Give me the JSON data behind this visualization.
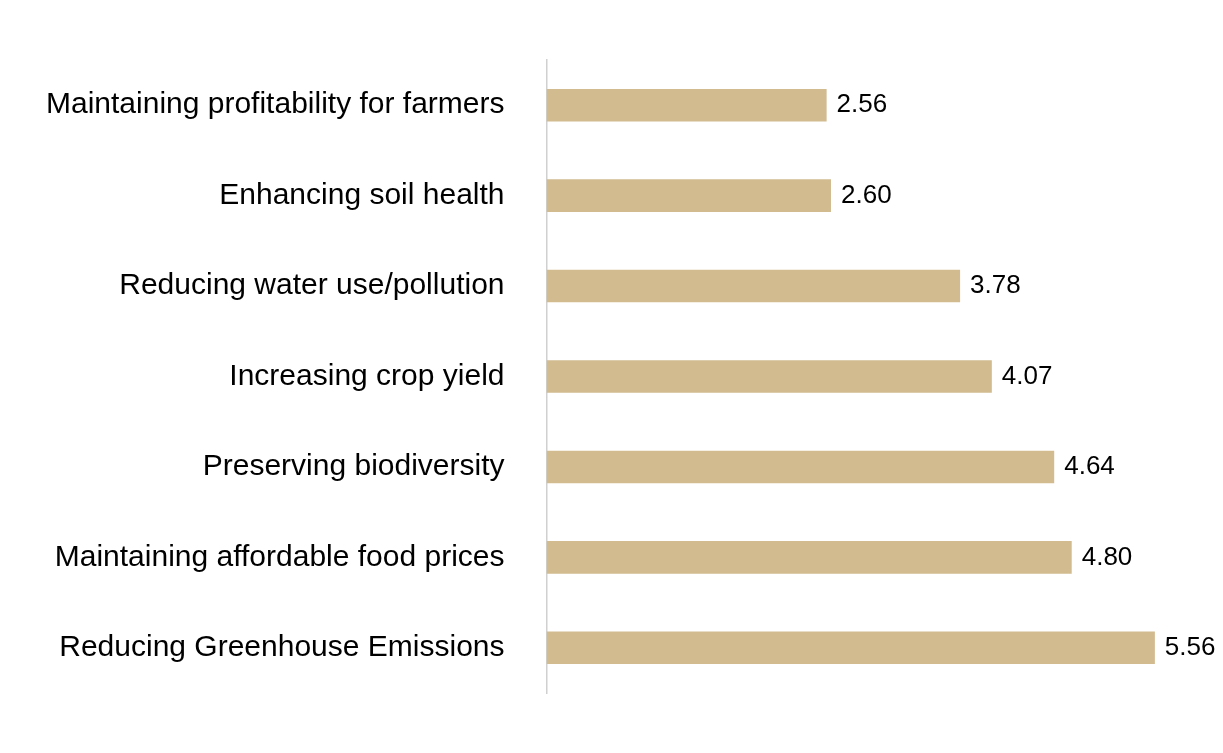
{
  "chart_data": {
    "type": "bar",
    "orientation": "horizontal",
    "categories": [
      "Maintaining profitability for farmers",
      "Enhancing soil health",
      "Reducing water use/pollution",
      "Increasing crop yield",
      "Preserving biodiversity",
      "Maintaining affordable food prices",
      "Reducing Greenhouse Emissions"
    ],
    "values": [
      2.56,
      2.6,
      3.78,
      4.07,
      4.64,
      4.8,
      5.56
    ],
    "value_labels": [
      "2.56",
      "2.60",
      "3.78",
      "4.07",
      "4.64",
      "4.80",
      "5.56"
    ],
    "color": "#d1bb8f",
    "legend": false,
    "tick_labels": "y"
  }
}
